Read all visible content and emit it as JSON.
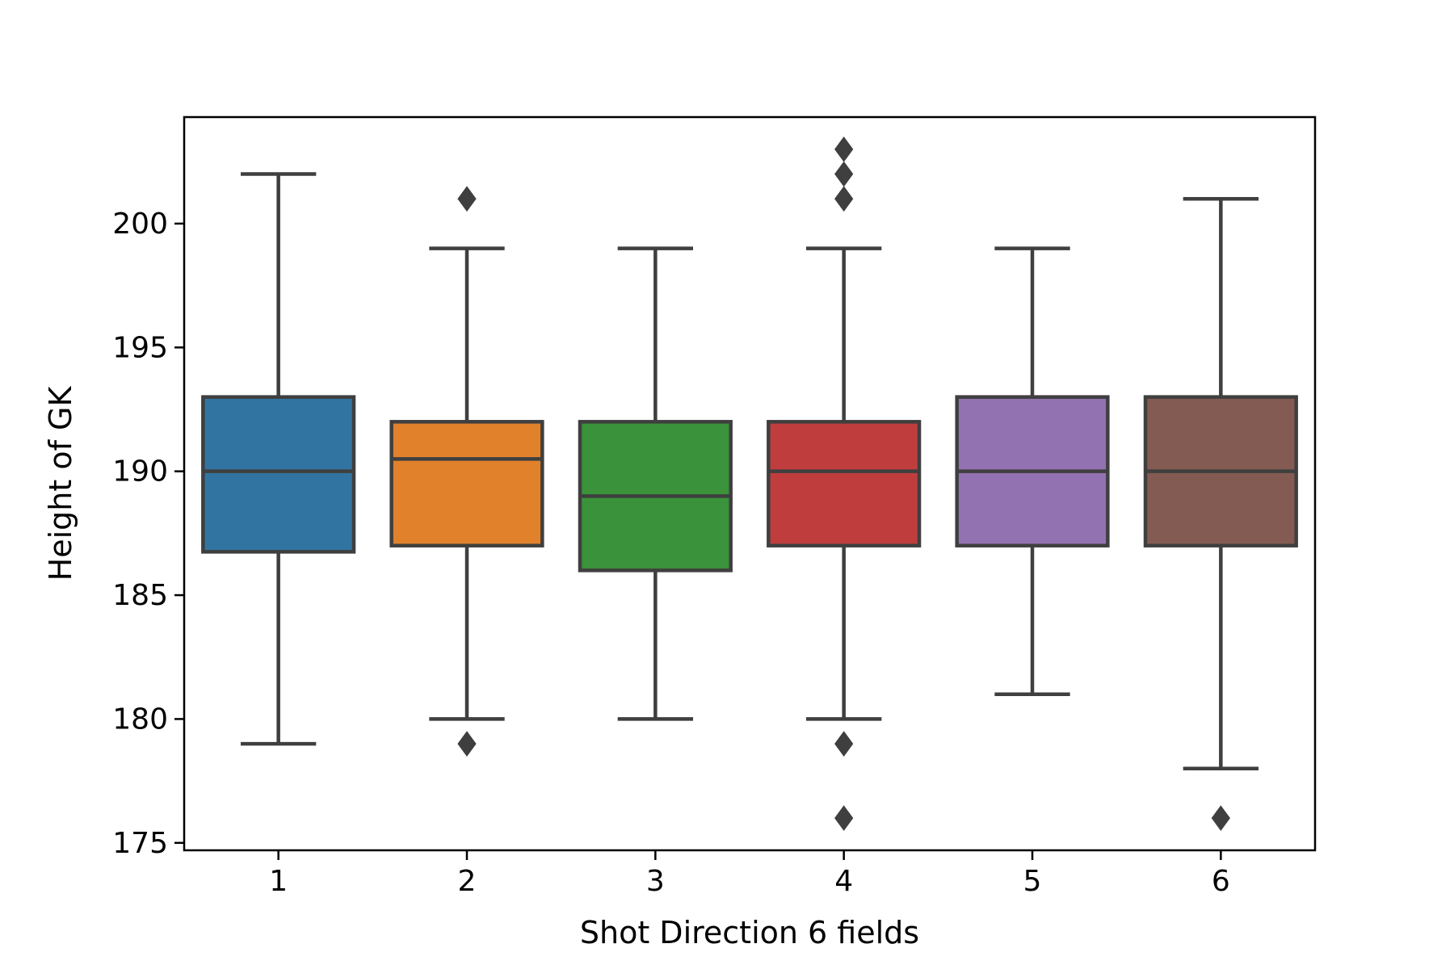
{
  "chart_data": {
    "type": "box",
    "title": "",
    "xlabel": "Shot Direction 6 fields",
    "ylabel": "Height of GK",
    "categories": [
      "1",
      "2",
      "3",
      "4",
      "5",
      "6"
    ],
    "ylim": [
      174.7,
      204.3
    ],
    "yticks": [
      175,
      180,
      185,
      190,
      195,
      200
    ],
    "grid": false,
    "legend": "none",
    "boxes": [
      {
        "category": "1",
        "color": "#3274a1",
        "whisker_low": 179,
        "q1": 186.75,
        "median": 190,
        "q3": 193,
        "whisker_high": 202,
        "outliers": []
      },
      {
        "category": "2",
        "color": "#e1812c",
        "whisker_low": 180,
        "q1": 187,
        "median": 190.5,
        "q3": 192,
        "whisker_high": 199,
        "outliers": [
          201,
          179
        ]
      },
      {
        "category": "3",
        "color": "#3a923a",
        "whisker_low": 180,
        "q1": 186,
        "median": 189,
        "q3": 192,
        "whisker_high": 199,
        "outliers": []
      },
      {
        "category": "4",
        "color": "#c03d3e",
        "whisker_low": 180,
        "q1": 187,
        "median": 190,
        "q3": 192,
        "whisker_high": 199,
        "outliers": [
          201,
          202,
          203,
          179,
          176
        ]
      },
      {
        "category": "5",
        "color": "#9372b2",
        "whisker_low": 181,
        "q1": 187,
        "median": 190,
        "q3": 193,
        "whisker_high": 199,
        "outliers": []
      },
      {
        "category": "6",
        "color": "#845b53",
        "whisker_low": 178,
        "q1": 187,
        "median": 190,
        "q3": 193,
        "whisker_high": 201,
        "outliers": [
          176
        ]
      }
    ]
  }
}
